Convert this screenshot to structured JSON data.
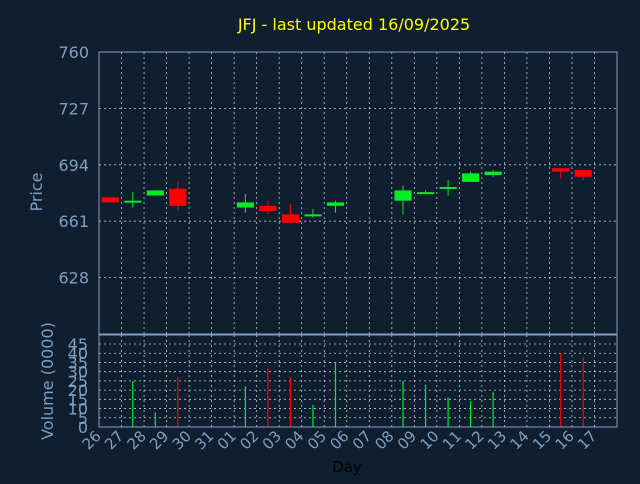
{
  "title": "JFJ - last updated 16/09/2025",
  "colors": {
    "background": "#0f1f30",
    "title": "#ffff00",
    "axis_text": "#7f9fbf",
    "label_text": "#7f9fbf",
    "frame": "#7f9fbf",
    "grid": "#ffffff",
    "up": "#00ee22",
    "down": "#ff0000",
    "xlabel_text": "#000000"
  },
  "chart_data": [
    {
      "type": "candlestick",
      "title": "JFJ - last updated 16/09/2025",
      "xlabel": "",
      "ylabel": "Price",
      "ylim": [
        595,
        760
      ],
      "yticks": [
        628,
        661,
        694,
        727,
        760
      ],
      "grid": true,
      "categories": [
        "26",
        "27",
        "28",
        "29",
        "30",
        "31",
        "01",
        "02",
        "03",
        "04",
        "05",
        "06",
        "07",
        "08",
        "09",
        "10",
        "11",
        "12",
        "13",
        "14",
        "15",
        "16",
        "17"
      ],
      "candles": [
        {
          "x": "26",
          "open": 675,
          "high": 675,
          "low": 672,
          "close": 672
        },
        {
          "x": "27",
          "open": 672,
          "high": 678,
          "low": 669,
          "close": 673
        },
        {
          "x": "28",
          "open": 676,
          "high": 679,
          "low": 676,
          "close": 679
        },
        {
          "x": "29",
          "open": 680,
          "high": 684,
          "low": 667,
          "close": 670
        },
        {
          "x": "01",
          "open": 669,
          "high": 677,
          "low": 666,
          "close": 672
        },
        {
          "x": "02",
          "open": 670,
          "high": 673,
          "low": 665,
          "close": 667
        },
        {
          "x": "03",
          "open": 665,
          "high": 671,
          "low": 660,
          "close": 660
        },
        {
          "x": "04",
          "open": 664,
          "high": 668,
          "low": 663,
          "close": 665
        },
        {
          "x": "05",
          "open": 670,
          "high": 673,
          "low": 666,
          "close": 672
        },
        {
          "x": "08",
          "open": 673,
          "high": 682,
          "low": 665,
          "close": 679
        },
        {
          "x": "09",
          "open": 677,
          "high": 679,
          "low": 677,
          "close": 678
        },
        {
          "x": "10",
          "open": 680,
          "high": 685,
          "low": 676,
          "close": 681
        },
        {
          "x": "11",
          "open": 684,
          "high": 690,
          "low": 684,
          "close": 689
        },
        {
          "x": "12",
          "open": 688,
          "high": 691,
          "low": 687,
          "close": 690
        },
        {
          "x": "15",
          "open": 692,
          "high": 692,
          "low": 686,
          "close": 690
        },
        {
          "x": "16",
          "open": 691,
          "high": 691,
          "low": 685,
          "close": 687
        }
      ]
    },
    {
      "type": "bar",
      "title": "",
      "xlabel": "Day",
      "ylabel": "Volume (0000)",
      "ylim": [
        0,
        45
      ],
      "yticks": [
        0,
        5,
        10,
        15,
        20,
        25,
        30,
        35,
        40,
        45
      ],
      "grid": true,
      "categories": [
        "26",
        "27",
        "28",
        "29",
        "30",
        "31",
        "01",
        "02",
        "03",
        "04",
        "05",
        "06",
        "07",
        "08",
        "09",
        "10",
        "11",
        "12",
        "13",
        "14",
        "15",
        "16",
        "17"
      ],
      "values": [
        0,
        25,
        8,
        27,
        0,
        0,
        22,
        32,
        27,
        12,
        35,
        0,
        0,
        25,
        23,
        16,
        14,
        19,
        0,
        0,
        40,
        38,
        0
      ],
      "direction": [
        "down",
        "up",
        "up",
        "down",
        "",
        "",
        "up",
        "down",
        "down",
        "up",
        "up",
        "",
        "",
        "up",
        "up",
        "up",
        "up",
        "up",
        "",
        "",
        "down",
        "down",
        ""
      ]
    }
  ]
}
